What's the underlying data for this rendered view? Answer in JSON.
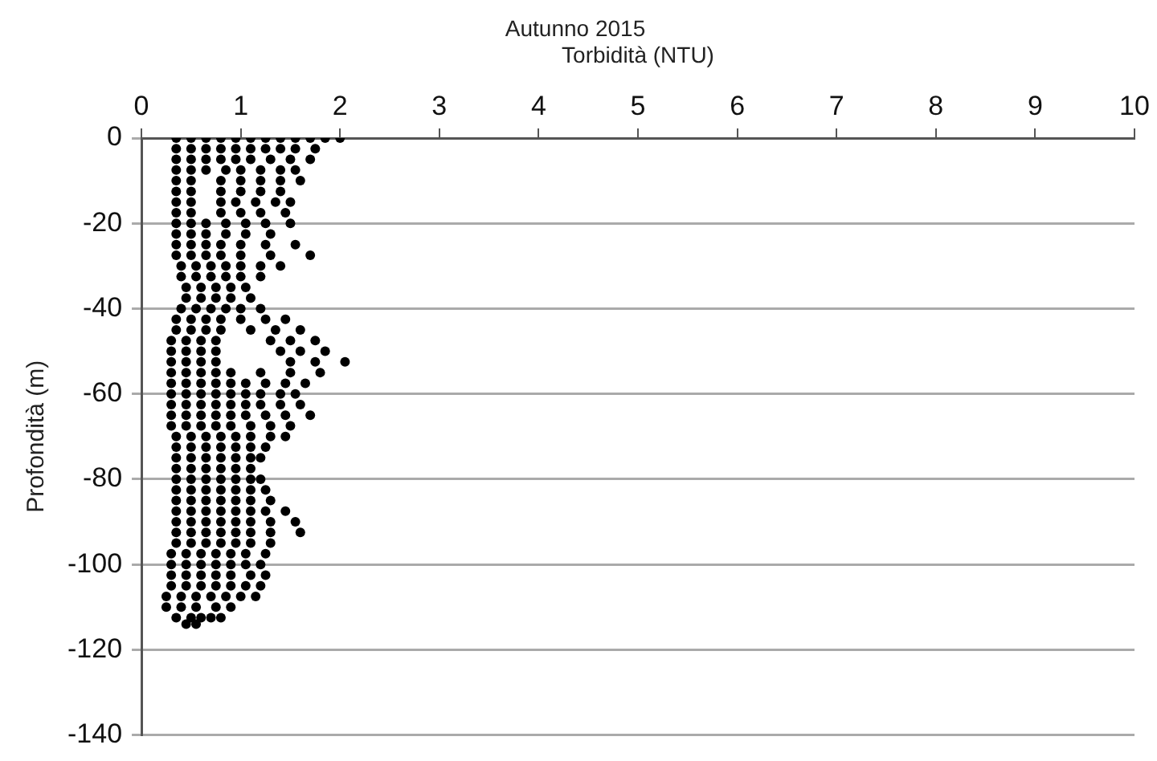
{
  "chart_data": {
    "type": "scatter",
    "title": "Autunno 2015",
    "xlabel": "Torbidità (NTU)",
    "ylabel": "Profondità (m)",
    "xlim": [
      0,
      10
    ],
    "xticks": [
      0,
      1,
      2,
      3,
      4,
      5,
      6,
      7,
      8,
      9,
      10
    ],
    "ylim": [
      -140,
      0
    ],
    "yticks": [
      -140,
      -120,
      -100,
      -80,
      -60,
      -40,
      -20,
      0
    ],
    "grid": "y",
    "legend": false,
    "marker": "circle",
    "series": [
      {
        "color": "#000000",
        "x": [
          0.35,
          0.5,
          0.65,
          0.8,
          0.95,
          1.1,
          1.25,
          1.4,
          1.55,
          1.7,
          1.85,
          2.0
        ],
        "values": [
          0,
          0,
          0,
          0,
          0,
          0,
          0,
          0,
          0,
          0,
          0,
          0
        ]
      },
      {
        "color": "#000000",
        "x": [
          0.35,
          0.5,
          0.65,
          0.8,
          0.95,
          1.1,
          1.25,
          1.4,
          1.55,
          1.75
        ],
        "values": [
          -2.5,
          -2.5,
          -2.5,
          -2.5,
          -2.5,
          -2.5,
          -2.5,
          -2.5,
          -2.5,
          -2.5
        ]
      },
      {
        "color": "#000000",
        "x": [
          0.35,
          0.5,
          0.65,
          0.8,
          0.95,
          1.1,
          1.3,
          1.5,
          1.7
        ],
        "values": [
          -5,
          -5,
          -5,
          -5,
          -5,
          -5,
          -5,
          -5,
          -5
        ]
      },
      {
        "color": "#000000",
        "x": [
          0.35,
          0.5,
          0.65,
          0.85,
          1.0,
          1.2,
          1.4,
          1.55
        ],
        "values": [
          -7.5,
          -7.5,
          -7.5,
          -7.5,
          -7.5,
          -7.5,
          -7.5,
          -7.5
        ]
      },
      {
        "color": "#000000",
        "x": [
          0.35,
          0.5,
          0.8,
          1.0,
          1.2,
          1.4,
          1.6
        ],
        "values": [
          -10,
          -10,
          -10,
          -10,
          -10,
          -10,
          -10
        ]
      },
      {
        "color": "#000000",
        "x": [
          0.35,
          0.5,
          0.8,
          1.0,
          1.2,
          1.4
        ],
        "values": [
          -12.5,
          -12.5,
          -12.5,
          -12.5,
          -12.5,
          -12.5
        ]
      },
      {
        "color": "#000000",
        "x": [
          0.35,
          0.5,
          0.8,
          0.95,
          1.15,
          1.35,
          1.5
        ],
        "values": [
          -15,
          -15,
          -15,
          -15,
          -15,
          -15,
          -15
        ]
      },
      {
        "color": "#000000",
        "x": [
          0.35,
          0.5,
          0.8,
          1.0,
          1.2,
          1.45
        ],
        "values": [
          -17.5,
          -17.5,
          -17.5,
          -17.5,
          -17.5,
          -17.5
        ]
      },
      {
        "color": "#000000",
        "x": [
          0.35,
          0.5,
          0.65,
          0.85,
          1.05,
          1.25,
          1.5
        ],
        "values": [
          -20,
          -20,
          -20,
          -20,
          -20,
          -20,
          -20
        ]
      },
      {
        "color": "#000000",
        "x": [
          0.35,
          0.5,
          0.65,
          0.85,
          1.05,
          1.3
        ],
        "values": [
          -22.5,
          -22.5,
          -22.5,
          -22.5,
          -22.5,
          -22.5
        ]
      },
      {
        "color": "#000000",
        "x": [
          0.35,
          0.5,
          0.65,
          0.8,
          1.0,
          1.25,
          1.55
        ],
        "values": [
          -25,
          -25,
          -25,
          -25,
          -25,
          -25,
          -25
        ]
      },
      {
        "color": "#000000",
        "x": [
          0.35,
          0.5,
          0.65,
          0.8,
          1.0,
          1.3,
          1.7
        ],
        "values": [
          -27.5,
          -27.5,
          -27.5,
          -27.5,
          -27.5,
          -27.5,
          -27.5
        ]
      },
      {
        "color": "#000000",
        "x": [
          0.4,
          0.55,
          0.7,
          0.85,
          1.0,
          1.2,
          1.4
        ],
        "values": [
          -30,
          -30,
          -30,
          -30,
          -30,
          -30,
          -30
        ]
      },
      {
        "color": "#000000",
        "x": [
          0.4,
          0.55,
          0.7,
          0.85,
          1.0,
          1.2
        ],
        "values": [
          -32.5,
          -32.5,
          -32.5,
          -32.5,
          -32.5,
          -32.5
        ]
      },
      {
        "color": "#000000",
        "x": [
          0.45,
          0.6,
          0.75,
          0.9,
          1.05
        ],
        "values": [
          -35,
          -35,
          -35,
          -35,
          -35
        ]
      },
      {
        "color": "#000000",
        "x": [
          0.45,
          0.6,
          0.75,
          0.9,
          1.1
        ],
        "values": [
          -37.5,
          -37.5,
          -37.5,
          -37.5,
          -37.5
        ]
      },
      {
        "color": "#000000",
        "x": [
          0.4,
          0.55,
          0.7,
          0.85,
          1.0,
          1.2
        ],
        "values": [
          -40,
          -40,
          -40,
          -40,
          -40,
          -40
        ]
      },
      {
        "color": "#000000",
        "x": [
          0.35,
          0.5,
          0.65,
          0.8,
          1.0,
          1.25,
          1.45
        ],
        "values": [
          -42.5,
          -42.5,
          -42.5,
          -42.5,
          -42.5,
          -42.5,
          -42.5
        ]
      },
      {
        "color": "#000000",
        "x": [
          0.35,
          0.5,
          0.65,
          0.8,
          1.1,
          1.35,
          1.6
        ],
        "values": [
          -45,
          -45,
          -45,
          -45,
          -45,
          -45,
          -45
        ]
      },
      {
        "color": "#000000",
        "x": [
          0.3,
          0.45,
          0.6,
          0.75,
          1.3,
          1.5,
          1.75
        ],
        "values": [
          -47.5,
          -47.5,
          -47.5,
          -47.5,
          -47.5,
          -47.5,
          -47.5
        ]
      },
      {
        "color": "#000000",
        "x": [
          0.3,
          0.45,
          0.6,
          0.75,
          1.4,
          1.6,
          1.85
        ],
        "values": [
          -50,
          -50,
          -50,
          -50,
          -50,
          -50,
          -50
        ]
      },
      {
        "color": "#000000",
        "x": [
          0.3,
          0.45,
          0.6,
          0.75,
          1.5,
          1.75,
          2.05
        ],
        "values": [
          -52.5,
          -52.5,
          -52.5,
          -52.5,
          -52.5,
          -52.5,
          -52.5
        ]
      },
      {
        "color": "#000000",
        "x": [
          0.3,
          0.45,
          0.6,
          0.75,
          0.9,
          1.2,
          1.5,
          1.8
        ],
        "values": [
          -55,
          -55,
          -55,
          -55,
          -55,
          -55,
          -55,
          -55
        ]
      },
      {
        "color": "#000000",
        "x": [
          0.3,
          0.45,
          0.6,
          0.75,
          0.9,
          1.05,
          1.25,
          1.45,
          1.65
        ],
        "values": [
          -57.5,
          -57.5,
          -57.5,
          -57.5,
          -57.5,
          -57.5,
          -57.5,
          -57.5,
          -57.5
        ]
      },
      {
        "color": "#000000",
        "x": [
          0.3,
          0.45,
          0.6,
          0.75,
          0.9,
          1.05,
          1.2,
          1.4,
          1.55
        ],
        "values": [
          -60,
          -60,
          -60,
          -60,
          -60,
          -60,
          -60,
          -60,
          -60
        ]
      },
      {
        "color": "#000000",
        "x": [
          0.3,
          0.45,
          0.6,
          0.75,
          0.9,
          1.05,
          1.2,
          1.4,
          1.6
        ],
        "values": [
          -62.5,
          -62.5,
          -62.5,
          -62.5,
          -62.5,
          -62.5,
          -62.5,
          -62.5,
          -62.5
        ]
      },
      {
        "color": "#000000",
        "x": [
          0.3,
          0.45,
          0.6,
          0.75,
          0.9,
          1.05,
          1.25,
          1.45,
          1.7
        ],
        "values": [
          -65,
          -65,
          -65,
          -65,
          -65,
          -65,
          -65,
          -65,
          -65
        ]
      },
      {
        "color": "#000000",
        "x": [
          0.3,
          0.45,
          0.6,
          0.75,
          0.9,
          1.1,
          1.3,
          1.5
        ],
        "values": [
          -67.5,
          -67.5,
          -67.5,
          -67.5,
          -67.5,
          -67.5,
          -67.5,
          -67.5
        ]
      },
      {
        "color": "#000000",
        "x": [
          0.35,
          0.5,
          0.65,
          0.8,
          0.95,
          1.1,
          1.3,
          1.45
        ],
        "values": [
          -70,
          -70,
          -70,
          -70,
          -70,
          -70,
          -70,
          -70
        ]
      },
      {
        "color": "#000000",
        "x": [
          0.35,
          0.5,
          0.65,
          0.8,
          0.95,
          1.1,
          1.25
        ],
        "values": [
          -72.5,
          -72.5,
          -72.5,
          -72.5,
          -72.5,
          -72.5,
          -72.5
        ]
      },
      {
        "color": "#000000",
        "x": [
          0.35,
          0.5,
          0.65,
          0.8,
          0.95,
          1.1,
          1.2
        ],
        "values": [
          -75,
          -75,
          -75,
          -75,
          -75,
          -75,
          -75
        ]
      },
      {
        "color": "#000000",
        "x": [
          0.35,
          0.5,
          0.65,
          0.8,
          0.95,
          1.1
        ],
        "values": [
          -77.5,
          -77.5,
          -77.5,
          -77.5,
          -77.5,
          -77.5
        ]
      },
      {
        "color": "#000000",
        "x": [
          0.35,
          0.5,
          0.65,
          0.8,
          0.95,
          1.1,
          1.2
        ],
        "values": [
          -80,
          -80,
          -80,
          -80,
          -80,
          -80,
          -80
        ]
      },
      {
        "color": "#000000",
        "x": [
          0.35,
          0.5,
          0.65,
          0.8,
          0.95,
          1.1,
          1.25
        ],
        "values": [
          -82.5,
          -82.5,
          -82.5,
          -82.5,
          -82.5,
          -82.5,
          -82.5
        ]
      },
      {
        "color": "#000000",
        "x": [
          0.35,
          0.5,
          0.65,
          0.8,
          0.95,
          1.1,
          1.3
        ],
        "values": [
          -85,
          -85,
          -85,
          -85,
          -85,
          -85,
          -85
        ]
      },
      {
        "color": "#000000",
        "x": [
          0.35,
          0.5,
          0.65,
          0.8,
          0.95,
          1.1,
          1.25,
          1.45
        ],
        "values": [
          -87.5,
          -87.5,
          -87.5,
          -87.5,
          -87.5,
          -87.5,
          -87.5,
          -87.5
        ]
      },
      {
        "color": "#000000",
        "x": [
          0.35,
          0.5,
          0.65,
          0.8,
          0.95,
          1.1,
          1.3,
          1.55
        ],
        "values": [
          -90,
          -90,
          -90,
          -90,
          -90,
          -90,
          -90,
          -90
        ]
      },
      {
        "color": "#000000",
        "x": [
          0.35,
          0.5,
          0.65,
          0.8,
          0.95,
          1.1,
          1.3,
          1.6
        ],
        "values": [
          -92.5,
          -92.5,
          -92.5,
          -92.5,
          -92.5,
          -92.5,
          -92.5,
          -92.5
        ]
      },
      {
        "color": "#000000",
        "x": [
          0.35,
          0.5,
          0.65,
          0.8,
          0.95,
          1.1,
          1.3
        ],
        "values": [
          -95,
          -95,
          -95,
          -95,
          -95,
          -95,
          -95
        ]
      },
      {
        "color": "#000000",
        "x": [
          0.3,
          0.45,
          0.6,
          0.75,
          0.9,
          1.05,
          1.25
        ],
        "values": [
          -97.5,
          -97.5,
          -97.5,
          -97.5,
          -97.5,
          -97.5,
          -97.5
        ]
      },
      {
        "color": "#000000",
        "x": [
          0.3,
          0.45,
          0.6,
          0.75,
          0.9,
          1.05,
          1.2
        ],
        "values": [
          -100,
          -100,
          -100,
          -100,
          -100,
          -100,
          -100
        ]
      },
      {
        "color": "#000000",
        "x": [
          0.3,
          0.45,
          0.6,
          0.75,
          0.9,
          1.1,
          1.25
        ],
        "values": [
          -102.5,
          -102.5,
          -102.5,
          -102.5,
          -102.5,
          -102.5,
          -102.5
        ]
      },
      {
        "color": "#000000",
        "x": [
          0.3,
          0.45,
          0.6,
          0.75,
          0.9,
          1.05,
          1.2
        ],
        "values": [
          -105,
          -105,
          -105,
          -105,
          -105,
          -105,
          -105
        ]
      },
      {
        "color": "#000000",
        "x": [
          0.25,
          0.4,
          0.55,
          0.7,
          0.85,
          1.0,
          1.15
        ],
        "values": [
          -107.5,
          -107.5,
          -107.5,
          -107.5,
          -107.5,
          -107.5,
          -107.5
        ]
      },
      {
        "color": "#000000",
        "x": [
          0.25,
          0.4,
          0.55,
          0.75,
          0.9
        ],
        "values": [
          -110,
          -110,
          -110,
          -110,
          -110
        ]
      },
      {
        "color": "#000000",
        "x": [
          0.35,
          0.5,
          0.6,
          0.7,
          0.8
        ],
        "values": [
          -112.5,
          -112.5,
          -112.5,
          -112.5,
          -112.5
        ]
      },
      {
        "color": "#000000",
        "x": [
          0.45,
          0.55
        ],
        "values": [
          -114,
          -114
        ]
      }
    ]
  }
}
